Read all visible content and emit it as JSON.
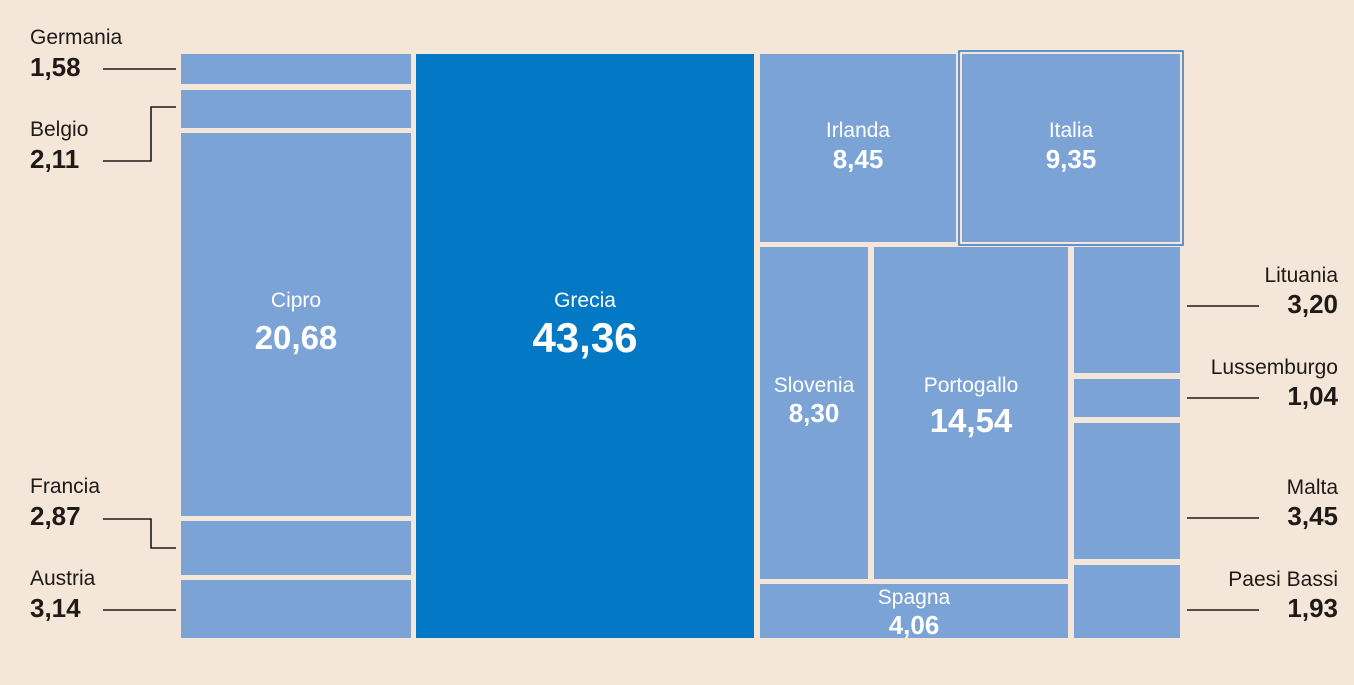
{
  "colors": {
    "background": "#f4e6d8",
    "tile": "#7ba3d6",
    "tile_highlight": "#0379c5",
    "outline": "#3b7fc4",
    "text_dark": "#1f1a17",
    "text_light": "#ffffff"
  },
  "chart_data": {
    "type": "treemap",
    "title": "",
    "items": [
      {
        "name": "Grecia",
        "value": 43.36,
        "value_label": "43,36"
      },
      {
        "name": "Cipro",
        "value": 20.68,
        "value_label": "20,68"
      },
      {
        "name": "Portogallo",
        "value": 14.54,
        "value_label": "14,54"
      },
      {
        "name": "Italia",
        "value": 9.35,
        "value_label": "9,35"
      },
      {
        "name": "Irlanda",
        "value": 8.45,
        "value_label": "8,45"
      },
      {
        "name": "Slovenia",
        "value": 8.3,
        "value_label": "8,30"
      },
      {
        "name": "Spagna",
        "value": 4.06,
        "value_label": "4,06"
      },
      {
        "name": "Malta",
        "value": 3.45,
        "value_label": "3,45"
      },
      {
        "name": "Lituania",
        "value": 3.2,
        "value_label": "3,20"
      },
      {
        "name": "Austria",
        "value": 3.14,
        "value_label": "3,14"
      },
      {
        "name": "Francia",
        "value": 2.87,
        "value_label": "2,87"
      },
      {
        "name": "Belgio",
        "value": 2.11,
        "value_label": "2,11"
      },
      {
        "name": "Paesi Bassi",
        "value": 1.93,
        "value_label": "1,93"
      },
      {
        "name": "Germania",
        "value": 1.58,
        "value_label": "1,58"
      },
      {
        "name": "Lussemburgo",
        "value": 1.04,
        "value_label": "1,04"
      }
    ]
  }
}
